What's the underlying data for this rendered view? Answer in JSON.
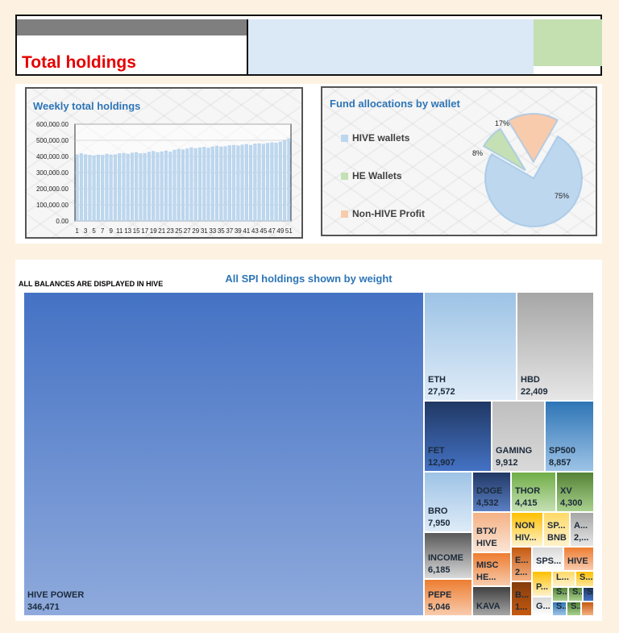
{
  "header": {
    "title": "Total holdings"
  },
  "weekly_chart": {
    "title": "Weekly total holdings",
    "y_ticks": [
      "600,000.00",
      "500,000.00",
      "400,000.00",
      "300,000.00",
      "200,000.00",
      "100,000.00",
      "0.00"
    ],
    "x_ticks": [
      "1",
      "3",
      "5",
      "7",
      "9",
      "11",
      "13",
      "15",
      "17",
      "19",
      "21",
      "23",
      "25",
      "27",
      "29",
      "31",
      "33",
      "35",
      "37",
      "39",
      "41",
      "43",
      "45",
      "47",
      "49",
      "51"
    ]
  },
  "fund_chart": {
    "title": "Fund allocations by wallet",
    "legend": [
      "HIVE wallets",
      "HE Wallets",
      "Non-HIVE Profit"
    ],
    "labels": [
      "75%",
      "8%",
      "17%"
    ]
  },
  "treemap": {
    "title": "All SPI holdings shown by weight",
    "note": "ALL BALANCES ARE DISPLAYED IN HIVE",
    "cells": [
      {
        "name": "HIVE POWER",
        "value": "346,471"
      },
      {
        "name": "ETH",
        "value": "27,572"
      },
      {
        "name": "HBD",
        "value": "22,409"
      },
      {
        "name": "FET",
        "value": "12,907"
      },
      {
        "name": "GAMING",
        "value": "9,912"
      },
      {
        "name": "SP500",
        "value": "8,857"
      },
      {
        "name": "BRO",
        "value": "7,950"
      },
      {
        "name": "DOGE",
        "value": "4,532"
      },
      {
        "name": "THOR",
        "value": "4,415"
      },
      {
        "name": "XV",
        "value": "4,300"
      },
      {
        "name": "INCOME",
        "value": "6,185"
      },
      {
        "name": "BTX/",
        "value": "HIVE"
      },
      {
        "name": "NON",
        "value": "HIV..."
      },
      {
        "name": "SP...",
        "value": "BNB"
      },
      {
        "name": "A...",
        "value": "2,..."
      },
      {
        "name": "PEPE",
        "value": "5,046"
      },
      {
        "name": "MISC",
        "value": "HE..."
      },
      {
        "name": "E...",
        "value": "2..."
      },
      {
        "name": "SPS...",
        "value": ""
      },
      {
        "name": "HIVE",
        "value": ""
      },
      {
        "name": "KAVA",
        "value": ""
      },
      {
        "name": "B...",
        "value": "1..."
      },
      {
        "name": "P...",
        "value": ""
      },
      {
        "name": "L...",
        "value": ""
      },
      {
        "name": "S...",
        "value": ""
      },
      {
        "name": "S...",
        "value": ""
      },
      {
        "name": "S...",
        "value": ""
      },
      {
        "name": "S...",
        "value": ""
      },
      {
        "name": "G...",
        "value": ""
      },
      {
        "name": "S...",
        "value": ""
      },
      {
        "name": "S...",
        "value": ""
      },
      {
        "name": "",
        "value": ""
      }
    ]
  },
  "chart_data": [
    {
      "type": "bar",
      "title": "Weekly total holdings",
      "xlabel": "",
      "ylabel": "",
      "ylim": [
        0,
        600000
      ],
      "categories": [
        "1",
        "2",
        "3",
        "4",
        "5",
        "6",
        "7",
        "8",
        "9",
        "10",
        "11",
        "12",
        "13",
        "14",
        "15",
        "16",
        "17",
        "18",
        "19",
        "20",
        "21",
        "22",
        "23",
        "24",
        "25",
        "26",
        "27",
        "28",
        "29",
        "30",
        "31",
        "32",
        "33",
        "34",
        "35",
        "36",
        "37",
        "38",
        "39",
        "40",
        "41",
        "42",
        "43",
        "44",
        "45",
        "46",
        "47",
        "48",
        "49",
        "50",
        "51"
      ],
      "values": [
        410000,
        418000,
        412000,
        408000,
        405000,
        410000,
        408000,
        415000,
        410000,
        412000,
        418000,
        420000,
        415000,
        422000,
        425000,
        418000,
        420000,
        428000,
        432000,
        425000,
        430000,
        435000,
        428000,
        440000,
        445000,
        442000,
        448000,
        455000,
        450000,
        455000,
        458000,
        452000,
        460000,
        465000,
        460000,
        462000,
        468000,
        470000,
        466000,
        472000,
        475000,
        470000,
        478000,
        480000,
        476000,
        482000,
        486000,
        484000,
        490000,
        500000,
        510000
      ],
      "grid": true,
      "legend": "none"
    },
    {
      "type": "pie",
      "title": "Fund allocations by wallet",
      "labels": [
        "HIVE wallets",
        "HE Wallets",
        "Non-HIVE Profit"
      ],
      "values": [
        75,
        8,
        17
      ],
      "legend": "left"
    },
    {
      "type": "heatmap",
      "title": "All SPI holdings shown by weight",
      "labels": [
        "HIVE POWER",
        "ETH",
        "HBD",
        "FET",
        "GAMING",
        "SP500",
        "BRO",
        "DOGE",
        "THOR",
        "XV",
        "INCOME",
        "PEPE"
      ],
      "values": [
        346471,
        27572,
        22409,
        12907,
        9912,
        8857,
        7950,
        4532,
        4415,
        4300,
        6185,
        5046
      ]
    }
  ],
  "colors": {
    "bar": "#bdd7ee",
    "pie_hive": "#bdd7ee",
    "pie_he": "#c5e0b4",
    "pie_nonhive": "#f8cbad",
    "accent": "#2e75b6",
    "title_red": "#e60000"
  }
}
